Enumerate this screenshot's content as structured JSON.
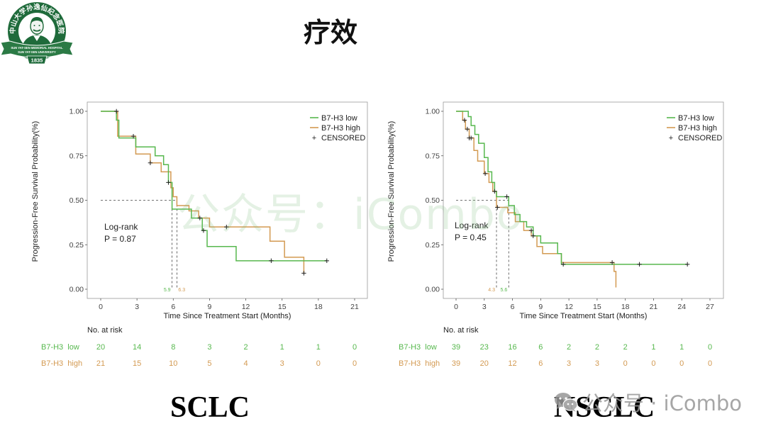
{
  "slide": {
    "title": "疗效"
  },
  "logo": {
    "ring_text": "中山大学孙逸仙纪念医院",
    "ribbon_line1": "SUN YAT-SEN MEMORIAL HOSPITAL",
    "ribbon_line2": "SUN YAT-SEN UNIVERSITY",
    "year": "1835"
  },
  "watermark": {
    "center": "公众号：iCombo",
    "footer": "公众号 · iCombo",
    "icon": "wechat-icon"
  },
  "colors": {
    "low": "#57b84e",
    "high": "#d39a52",
    "censor": "#222222",
    "guide": "#444444",
    "panel_border": "#9a9a9a",
    "logo_green": "#1f6b3b"
  },
  "chart_data": [
    {
      "type": "line",
      "caption": "SCLC",
      "xlabel": "Time Since Treatment Start (Months)",
      "ylabel": "Progression-Free Survival Probability(%)",
      "ylim": [
        0,
        1
      ],
      "x_ticks": [
        0,
        3,
        6,
        9,
        12,
        15,
        18,
        21
      ],
      "y_ticks": [
        0,
        0.25,
        0.5,
        0.75,
        1
      ],
      "y_tick_labels": [
        "0.00",
        "0.25",
        "0.50",
        "0.75",
        "1.00"
      ],
      "grid": false,
      "legend_position": "top-right",
      "censor_symbol": "+",
      "censor_label": "CENSORED",
      "annotation": {
        "test": "Log-rank",
        "p_value": "P = 0.87"
      },
      "series": [
        {
          "name": "B7-H3 high",
          "color": "#d39a52",
          "steps": [
            [
              0,
              1
            ],
            [
              1.4,
              0.86
            ],
            [
              2.9,
              0.76
            ],
            [
              4.1,
              0.71
            ],
            [
              5.0,
              0.66
            ],
            [
              5.8,
              0.57
            ],
            [
              6.0,
              0.52
            ],
            [
              6.3,
              0.47
            ],
            [
              7.3,
              0.44
            ],
            [
              8.1,
              0.4
            ],
            [
              9.0,
              0.35
            ],
            [
              14.0,
              0.27
            ],
            [
              15.2,
              0.18
            ],
            [
              16.8,
              0.09
            ]
          ],
          "end": 16.8,
          "censored": [
            [
              2.7,
              0.86
            ],
            [
              4.1,
              0.71
            ],
            [
              8.2,
              0.4
            ],
            [
              10.4,
              0.35
            ],
            [
              16.8,
              0.09
            ]
          ],
          "median": 6.3,
          "median_label": "6.3"
        },
        {
          "name": "B7-H3 low",
          "color": "#57b84e",
          "steps": [
            [
              0,
              1
            ],
            [
              1.3,
              0.95
            ],
            [
              1.5,
              0.85
            ],
            [
              2.9,
              0.8
            ],
            [
              4.5,
              0.75
            ],
            [
              5.2,
              0.7
            ],
            [
              5.6,
              0.6
            ],
            [
              5.9,
              0.45
            ],
            [
              7.5,
              0.4
            ],
            [
              8.4,
              0.33
            ],
            [
              8.8,
              0.24
            ],
            [
              11.2,
              0.16
            ]
          ],
          "end": 18.7,
          "censored": [
            [
              1.3,
              1.0
            ],
            [
              5.6,
              0.6
            ],
            [
              8.5,
              0.33
            ],
            [
              14.1,
              0.16
            ],
            [
              18.7,
              0.16
            ]
          ],
          "median": 5.9,
          "median_label": "5.9"
        }
      ],
      "legend": [
        "B7-H3 low",
        "B7-H3 high"
      ],
      "risk_table": {
        "title": "No. at risk",
        "rows": [
          {
            "label": "B7-H3  low",
            "color": "#57b84e",
            "values": [
              20,
              14,
              8,
              3,
              2,
              1,
              1,
              0
            ]
          },
          {
            "label": "B7-H3  high",
            "color": "#d39a52",
            "values": [
              21,
              15,
              10,
              5,
              4,
              3,
              0,
              0
            ]
          }
        ]
      }
    },
    {
      "type": "line",
      "caption": "NSCLC",
      "xlabel": "Time Since Treatment Start (Months)",
      "ylabel": "Progression-Free Survival Probability(%)",
      "ylim": [
        0,
        1
      ],
      "x_ticks": [
        0,
        3,
        6,
        9,
        12,
        15,
        18,
        21,
        24,
        27
      ],
      "y_ticks": [
        0,
        0.25,
        0.5,
        0.75,
        1
      ],
      "y_tick_labels": [
        "0.00",
        "0.25",
        "0.50",
        "0.75",
        "1.00"
      ],
      "grid": false,
      "legend_position": "top-right",
      "censor_symbol": "+",
      "censor_label": "CENSORED",
      "annotation": {
        "test": "Log-rank",
        "p_value": "P = 0.45"
      },
      "series": [
        {
          "name": "B7-H3 high",
          "color": "#d39a52",
          "steps": [
            [
              0,
              1
            ],
            [
              0.7,
              0.95
            ],
            [
              1.0,
              0.9
            ],
            [
              1.4,
              0.85
            ],
            [
              1.9,
              0.78
            ],
            [
              2.3,
              0.72
            ],
            [
              3.0,
              0.65
            ],
            [
              3.5,
              0.6
            ],
            [
              3.9,
              0.55
            ],
            [
              4.3,
              0.46
            ],
            [
              5.5,
              0.43
            ],
            [
              6.3,
              0.38
            ],
            [
              7.2,
              0.33
            ],
            [
              8.0,
              0.3
            ],
            [
              8.6,
              0.24
            ],
            [
              9.2,
              0.2
            ],
            [
              11.2,
              0.15
            ],
            [
              16.8,
              0.1
            ],
            [
              17.0,
              0.01
            ]
          ],
          "end": 17.0,
          "censored": [
            [
              0.9,
              0.95
            ],
            [
              1.2,
              0.9
            ],
            [
              1.4,
              0.85
            ],
            [
              1.6,
              0.85
            ],
            [
              3.1,
              0.65
            ],
            [
              4.4,
              0.46
            ],
            [
              8.0,
              0.33
            ],
            [
              16.6,
              0.15
            ]
          ],
          "median": 4.3,
          "median_label": "4.3"
        },
        {
          "name": "B7-H3 low",
          "color": "#57b84e",
          "steps": [
            [
              0,
              1
            ],
            [
              1.3,
              0.97
            ],
            [
              1.6,
              0.92
            ],
            [
              2.0,
              0.87
            ],
            [
              2.4,
              0.82
            ],
            [
              3.0,
              0.74
            ],
            [
              3.4,
              0.66
            ],
            [
              3.8,
              0.6
            ],
            [
              4.1,
              0.55
            ],
            [
              4.3,
              0.52
            ],
            [
              5.6,
              0.47
            ],
            [
              6.2,
              0.42
            ],
            [
              6.8,
              0.38
            ],
            [
              7.5,
              0.35
            ],
            [
              8.2,
              0.3
            ],
            [
              9.0,
              0.26
            ],
            [
              10.8,
              0.2
            ],
            [
              11.2,
              0.14
            ]
          ],
          "end": 24.6,
          "censored": [
            [
              4.1,
              0.55
            ],
            [
              5.4,
              0.52
            ],
            [
              8.2,
              0.3
            ],
            [
              11.4,
              0.14
            ],
            [
              19.5,
              0.14
            ],
            [
              24.6,
              0.14
            ]
          ],
          "median": 5.6,
          "median_label": "5.6"
        }
      ],
      "legend": [
        "B7-H3 low",
        "B7-H3 high"
      ],
      "risk_table": {
        "title": "No. at risk",
        "rows": [
          {
            "label": "B7-H3  low",
            "color": "#57b84e",
            "values": [
              39,
              23,
              16,
              6,
              2,
              2,
              2,
              1,
              1,
              0
            ]
          },
          {
            "label": "B7-H3  high",
            "color": "#d39a52",
            "values": [
              39,
              20,
              12,
              6,
              3,
              3,
              0,
              0,
              0,
              0
            ]
          }
        ]
      }
    }
  ]
}
